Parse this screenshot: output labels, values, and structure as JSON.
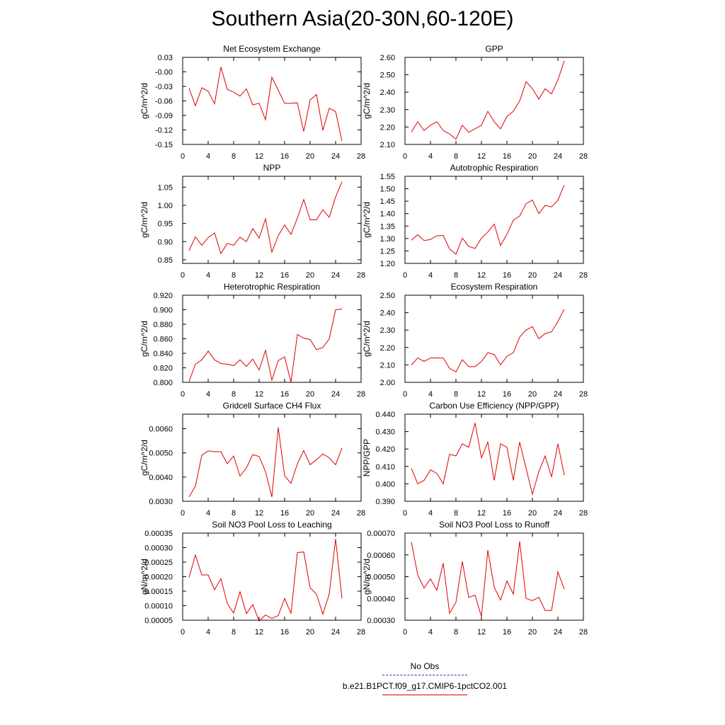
{
  "title": "Southern Asia(20-30N,60-120E)",
  "colors": {
    "series": "#e00000",
    "obs": "#2a2ad0",
    "axis": "#000000"
  },
  "legend": {
    "obs_label": "No Obs",
    "model_label": "b.e21.B1PCT.f09_g17.CMIP6-1pctCO2.001"
  },
  "chart_data": [
    {
      "type": "line",
      "title": "Net Ecosystem Exchange",
      "ylabel": "gC/m^2/d",
      "xlim": [
        0,
        28
      ],
      "xticks": [
        "0",
        "4",
        "8",
        "12",
        "16",
        "20",
        "24",
        "28"
      ],
      "ylim": [
        -0.15,
        0.03
      ],
      "yticks": [
        "0.03",
        "-0.00",
        "-0.03",
        "-0.06",
        "-0.09",
        "-0.12",
        "-0.15"
      ],
      "ytick_values": [
        0.03,
        0.0,
        -0.03,
        -0.06,
        -0.09,
        -0.12,
        -0.15
      ],
      "x": [
        1,
        2,
        3,
        4,
        5,
        6,
        7,
        8,
        9,
        10,
        11,
        12,
        13,
        14,
        15,
        16,
        17,
        18,
        19,
        20,
        21,
        22,
        23,
        24,
        25
      ],
      "y": [
        -0.034,
        -0.07,
        -0.033,
        -0.04,
        -0.066,
        0.01,
        -0.036,
        -0.042,
        -0.05,
        -0.035,
        -0.068,
        -0.065,
        -0.099,
        -0.011,
        -0.038,
        -0.065,
        -0.065,
        -0.064,
        -0.123,
        -0.058,
        -0.047,
        -0.121,
        -0.075,
        -0.082,
        -0.143
      ]
    },
    {
      "type": "line",
      "title": "GPP",
      "ylabel": "gC/m^2/d",
      "xlim": [
        0,
        28
      ],
      "xticks": [
        "0",
        "4",
        "8",
        "12",
        "16",
        "20",
        "24",
        "28"
      ],
      "ylim": [
        2.1,
        2.6
      ],
      "yticks": [
        "2.60",
        "2.50",
        "2.40",
        "2.30",
        "2.20",
        "2.10"
      ],
      "ytick_values": [
        2.6,
        2.5,
        2.4,
        2.3,
        2.2,
        2.1
      ],
      "x": [
        1,
        2,
        3,
        4,
        5,
        6,
        7,
        8,
        9,
        10,
        11,
        12,
        13,
        14,
        15,
        16,
        17,
        18,
        19,
        20,
        21,
        22,
        23,
        24,
        25
      ],
      "y": [
        2.17,
        2.23,
        2.18,
        2.21,
        2.23,
        2.18,
        2.16,
        2.13,
        2.21,
        2.17,
        2.19,
        2.21,
        2.29,
        2.23,
        2.19,
        2.26,
        2.29,
        2.35,
        2.46,
        2.42,
        2.36,
        2.42,
        2.39,
        2.47,
        2.58
      ]
    },
    {
      "type": "line",
      "title": "NPP",
      "ylabel": "gC/m^2/d",
      "xlim": [
        0,
        28
      ],
      "xticks": [
        "0",
        "4",
        "8",
        "12",
        "16",
        "20",
        "24",
        "28"
      ],
      "ylim": [
        0.84,
        1.08
      ],
      "yticks": [
        "1.05",
        "1.00",
        "0.95",
        "0.90",
        "0.85"
      ],
      "ytick_values": [
        1.05,
        1.0,
        0.95,
        0.9,
        0.85
      ],
      "x": [
        1,
        2,
        3,
        4,
        5,
        6,
        7,
        8,
        9,
        10,
        11,
        12,
        13,
        14,
        15,
        16,
        17,
        18,
        19,
        20,
        21,
        22,
        23,
        24,
        25
      ],
      "y": [
        0.875,
        0.913,
        0.89,
        0.911,
        0.924,
        0.867,
        0.895,
        0.89,
        0.912,
        0.9,
        0.936,
        0.91,
        0.963,
        0.871,
        0.916,
        0.946,
        0.92,
        0.965,
        1.016,
        0.96,
        0.96,
        0.988,
        0.967,
        1.023,
        1.065
      ]
    },
    {
      "type": "line",
      "title": "Autotrophic Respiration",
      "ylabel": "gC/m^2/d",
      "xlim": [
        0,
        28
      ],
      "xticks": [
        "0",
        "4",
        "8",
        "12",
        "16",
        "20",
        "24",
        "28"
      ],
      "ylim": [
        1.2,
        1.55
      ],
      "yticks": [
        "1.55",
        "1.50",
        "1.45",
        "1.40",
        "1.35",
        "1.30",
        "1.25",
        "1.20"
      ],
      "ytick_values": [
        1.55,
        1.5,
        1.45,
        1.4,
        1.35,
        1.3,
        1.25,
        1.2
      ],
      "x": [
        1,
        2,
        3,
        4,
        5,
        6,
        7,
        8,
        9,
        10,
        11,
        12,
        13,
        14,
        15,
        16,
        17,
        18,
        19,
        20,
        21,
        22,
        23,
        24,
        25
      ],
      "y": [
        1.293,
        1.315,
        1.292,
        1.296,
        1.311,
        1.312,
        1.258,
        1.237,
        1.302,
        1.268,
        1.26,
        1.302,
        1.326,
        1.358,
        1.272,
        1.317,
        1.373,
        1.39,
        1.44,
        1.455,
        1.4,
        1.433,
        1.427,
        1.454,
        1.515
      ]
    },
    {
      "type": "line",
      "title": "Heterotrophic Respiration",
      "ylabel": "gC/m^2/d",
      "xlim": [
        0,
        28
      ],
      "xticks": [
        "0",
        "4",
        "8",
        "12",
        "16",
        "20",
        "24",
        "28"
      ],
      "ylim": [
        0.8,
        0.92
      ],
      "yticks": [
        "0.920",
        "0.900",
        "0.880",
        "0.860",
        "0.840",
        "0.820",
        "0.800"
      ],
      "ytick_values": [
        0.92,
        0.9,
        0.88,
        0.86,
        0.84,
        0.82,
        0.8
      ],
      "x": [
        1,
        2,
        3,
        4,
        5,
        6,
        7,
        8,
        9,
        10,
        11,
        12,
        13,
        14,
        15,
        16,
        17,
        18,
        19,
        20,
        21,
        22,
        23,
        24,
        25
      ],
      "y": [
        0.801,
        0.825,
        0.831,
        0.843,
        0.831,
        0.826,
        0.825,
        0.823,
        0.831,
        0.822,
        0.832,
        0.817,
        0.844,
        0.803,
        0.83,
        0.835,
        0.8,
        0.866,
        0.861,
        0.859,
        0.845,
        0.848,
        0.86,
        0.9,
        0.901
      ]
    },
    {
      "type": "line",
      "title": "Ecosystem Respiration",
      "ylabel": "gC/m^2/d",
      "xlim": [
        0,
        28
      ],
      "xticks": [
        "0",
        "4",
        "8",
        "12",
        "16",
        "20",
        "24",
        "28"
      ],
      "ylim": [
        2.0,
        2.5
      ],
      "yticks": [
        "2.50",
        "2.40",
        "2.30",
        "2.20",
        "2.10",
        "2.00"
      ],
      "ytick_values": [
        2.5,
        2.4,
        2.3,
        2.2,
        2.1,
        2.0
      ],
      "x": [
        1,
        2,
        3,
        4,
        5,
        6,
        7,
        8,
        9,
        10,
        11,
        12,
        13,
        14,
        15,
        16,
        17,
        18,
        19,
        20,
        21,
        22,
        23,
        24,
        25
      ],
      "y": [
        2.1,
        2.14,
        2.12,
        2.14,
        2.14,
        2.14,
        2.08,
        2.06,
        2.13,
        2.09,
        2.09,
        2.12,
        2.17,
        2.16,
        2.1,
        2.15,
        2.17,
        2.26,
        2.3,
        2.32,
        2.25,
        2.28,
        2.29,
        2.35,
        2.42
      ]
    },
    {
      "type": "line",
      "title": "Gridcell Surface CH4 Flux",
      "ylabel": "gC/m^2/d",
      "xlim": [
        0,
        28
      ],
      "xticks": [
        "0",
        "4",
        "8",
        "12",
        "16",
        "20",
        "24",
        "28"
      ],
      "ylim": [
        0.003,
        0.0066
      ],
      "yticks": [
        "0.0060",
        "0.0050",
        "0.0040",
        "0.0030"
      ],
      "ytick_values": [
        0.006,
        0.005,
        0.004,
        0.003
      ],
      "x": [
        1,
        2,
        3,
        4,
        5,
        6,
        7,
        8,
        9,
        10,
        11,
        12,
        13,
        14,
        15,
        16,
        17,
        18,
        19,
        20,
        21,
        22,
        23,
        24,
        25
      ],
      "y": [
        0.00318,
        0.00362,
        0.0049,
        0.00508,
        0.00505,
        0.00505,
        0.00455,
        0.00487,
        0.00404,
        0.00438,
        0.00493,
        0.00485,
        0.00423,
        0.00318,
        0.00605,
        0.00405,
        0.00374,
        0.00455,
        0.0051,
        0.00451,
        0.00472,
        0.00495,
        0.0048,
        0.00451,
        0.0052
      ]
    },
    {
      "type": "line",
      "title": "Carbon Use Efficiency (NPP/GPP)",
      "ylabel": "NPP/GPP",
      "xlim": [
        0,
        28
      ],
      "xticks": [
        "0",
        "4",
        "8",
        "12",
        "16",
        "20",
        "24",
        "28"
      ],
      "ylim": [
        0.39,
        0.44
      ],
      "yticks": [
        "0.440",
        "0.430",
        "0.420",
        "0.410",
        "0.400",
        "0.390"
      ],
      "ytick_values": [
        0.44,
        0.43,
        0.42,
        0.41,
        0.4,
        0.39
      ],
      "x": [
        1,
        2,
        3,
        4,
        5,
        6,
        7,
        8,
        9,
        10,
        11,
        12,
        13,
        14,
        15,
        16,
        17,
        18,
        19,
        20,
        21,
        22,
        23,
        24,
        25
      ],
      "y": [
        0.409,
        0.4,
        0.402,
        0.408,
        0.406,
        0.4,
        0.417,
        0.416,
        0.423,
        0.421,
        0.435,
        0.415,
        0.424,
        0.402,
        0.423,
        0.421,
        0.402,
        0.424,
        0.409,
        0.394,
        0.407,
        0.416,
        0.404,
        0.423,
        0.405
      ]
    },
    {
      "type": "line",
      "title": "Soil NO3 Pool Loss to Leaching",
      "ylabel": "gN/m^2/d",
      "xlim": [
        0,
        28
      ],
      "xticks": [
        "0",
        "4",
        "8",
        "12",
        "16",
        "20",
        "24",
        "28"
      ],
      "ylim": [
        5e-05,
        0.00035
      ],
      "yticks": [
        "0.00035",
        "0.00030",
        "0.00025",
        "0.00020",
        "0.00015",
        "0.00010",
        "0.00005"
      ],
      "ytick_values": [
        0.00035,
        0.0003,
        0.00025,
        0.0002,
        0.00015,
        0.0001,
        5e-05
      ],
      "x": [
        1,
        2,
        3,
        4,
        5,
        6,
        7,
        8,
        9,
        10,
        11,
        12,
        13,
        14,
        15,
        16,
        17,
        18,
        19,
        20,
        21,
        22,
        23,
        24,
        25
      ],
      "y": [
        0.000197,
        0.000275,
        0.000206,
        0.000206,
        0.000155,
        0.000193,
        0.000107,
        7.5e-05,
        0.000148,
        7.3e-05,
        0.000104,
        4.7e-05,
        6.8e-05,
        5.6e-05,
        6.6e-05,
        0.000125,
        7.3e-05,
        0.000283,
        0.000285,
        0.000162,
        0.00014,
        7.1e-05,
        0.00014,
        0.00033,
        0.000125
      ]
    },
    {
      "type": "line",
      "title": "Soil NO3 Pool Loss to Runoff",
      "ylabel": "gN/m^2/d",
      "xlim": [
        0,
        28
      ],
      "xticks": [
        "0",
        "4",
        "8",
        "12",
        "16",
        "20",
        "24",
        "28"
      ],
      "ylim": [
        0.0003,
        0.0007
      ],
      "yticks": [
        "0.00070",
        "0.00060",
        "0.00050",
        "0.00040",
        "0.00030"
      ],
      "ytick_values": [
        0.0007,
        0.0006,
        0.0005,
        0.0004,
        0.0003
      ],
      "x": [
        1,
        2,
        3,
        4,
        5,
        6,
        7,
        8,
        9,
        10,
        11,
        12,
        13,
        14,
        15,
        16,
        17,
        18,
        19,
        20,
        21,
        22,
        23,
        24,
        25
      ],
      "y": [
        0.00066,
        0.000508,
        0.000448,
        0.00049,
        0.000438,
        0.000562,
        0.000332,
        0.000383,
        0.00057,
        0.000405,
        0.000415,
        0.000317,
        0.000622,
        0.000452,
        0.000393,
        0.00048,
        0.00042,
        0.000662,
        0.0004,
        0.00039,
        0.000405,
        0.000345,
        0.000345,
        0.000522,
        0.000443
      ]
    }
  ]
}
